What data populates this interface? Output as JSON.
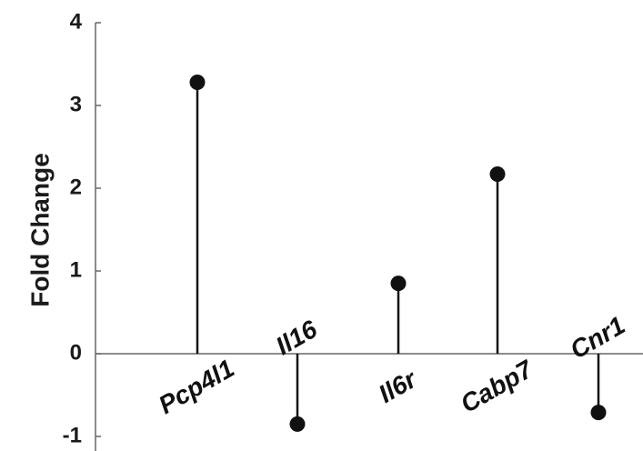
{
  "chart_data": {
    "type": "lollipop",
    "ylabel": "Fold Change",
    "xlabel": "",
    "title": "",
    "ylim": [
      -1,
      4
    ],
    "yticks": [
      -1,
      0,
      1,
      2,
      3,
      4
    ],
    "categories": [
      "Pcp4l1",
      "Il16",
      "Il6r",
      "Cabp7",
      "Cnr1"
    ],
    "values": [
      3.28,
      -0.85,
      0.85,
      2.17,
      -0.71
    ],
    "grid": false,
    "legend": "none",
    "marker_color": "#111111"
  }
}
